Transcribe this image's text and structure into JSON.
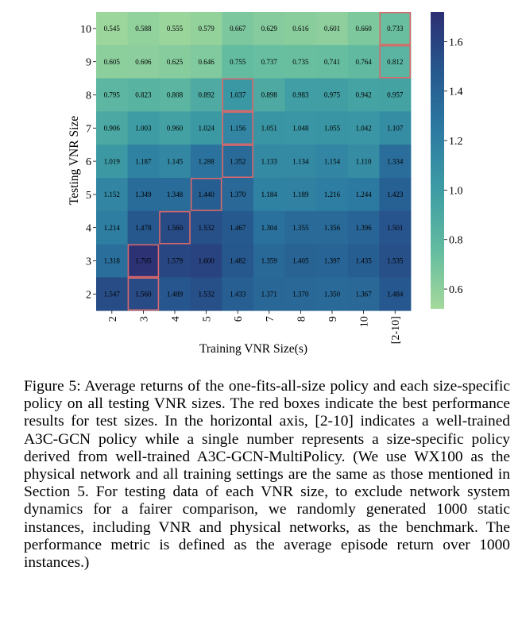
{
  "chart_data": {
    "type": "heatmap",
    "xlabel": "Training VNR Size(s)",
    "ylabel": "Testing VNR Size",
    "x_categories": [
      "2",
      "3",
      "4",
      "5",
      "6",
      "7",
      "8",
      "9",
      "10",
      "[2-10]"
    ],
    "y_categories": [
      "10",
      "9",
      "8",
      "7",
      "6",
      "5",
      "4",
      "3",
      "2"
    ],
    "values": [
      [
        0.545,
        0.588,
        0.555,
        0.579,
        0.667,
        0.629,
        0.616,
        0.601,
        0.66,
        0.733
      ],
      [
        0.605,
        0.606,
        0.625,
        0.646,
        0.755,
        0.737,
        0.735,
        0.741,
        0.764,
        0.812
      ],
      [
        0.795,
        0.823,
        0.808,
        0.892,
        1.037,
        0.898,
        0.983,
        0.975,
        0.942,
        0.957
      ],
      [
        0.906,
        1.003,
        0.96,
        1.024,
        1.156,
        1.051,
        1.048,
        1.055,
        1.042,
        1.107
      ],
      [
        1.019,
        1.187,
        1.145,
        1.288,
        1.352,
        1.133,
        1.134,
        1.154,
        1.11,
        1.334
      ],
      [
        1.152,
        1.349,
        1.348,
        1.44,
        1.37,
        1.184,
        1.189,
        1.216,
        1.244,
        1.423
      ],
      [
        1.214,
        1.478,
        1.56,
        1.532,
        1.467,
        1.304,
        1.355,
        1.356,
        1.396,
        1.501
      ],
      [
        1.318,
        1.705,
        1.579,
        1.6,
        1.482,
        1.359,
        1.405,
        1.397,
        1.435,
        1.535
      ],
      [
        1.547,
        1.56,
        1.489,
        1.532,
        1.433,
        1.371,
        1.37,
        1.35,
        1.367,
        1.484
      ]
    ],
    "value_labels": [
      [
        "0.545",
        "0.588",
        "0.555",
        "0.579",
        "0.667",
        "0.629",
        "0.616",
        "0.601",
        "0.660",
        "0.733"
      ],
      [
        "0.605",
        "0.606",
        "0.625",
        "0.646",
        "0.755",
        "0.737",
        "0.735",
        "0.741",
        "0.764",
        "0.812"
      ],
      [
        "0.795",
        "0.823",
        "0.808",
        "0.892",
        "1.037",
        "0.898",
        "0.983",
        "0.975",
        "0.942",
        "0.957"
      ],
      [
        "0.906",
        "1.003",
        "0.960",
        "1.024",
        "1.156",
        "1.051",
        "1.048",
        "1.055",
        "1.042",
        "1.107"
      ],
      [
        "1.019",
        "1.187",
        "1.145",
        "1.288",
        "1.352",
        "1.133",
        "1.134",
        "1.154",
        "1.110",
        "1.334"
      ],
      [
        "1.152",
        "1.349",
        "1.348",
        "1.440",
        "1.370",
        "1.184",
        "1.189",
        "1.216",
        "1.244",
        "1.423"
      ],
      [
        "1.214",
        "1.478",
        "1.560",
        "1.532",
        "1.467",
        "1.304",
        "1.355",
        "1.356",
        "1.396",
        "1.501"
      ],
      [
        "1.318",
        "1.705",
        "1.579",
        "1.600",
        "1.482",
        "1.359",
        "1.405",
        "1.397",
        "1.435",
        "1.535"
      ],
      [
        "1.547",
        "1.560",
        "1.489",
        "1.532",
        "1.433",
        "1.371",
        "1.370",
        "1.350",
        "1.367",
        "1.484"
      ]
    ],
    "highlighted_cells": [
      {
        "row": "10",
        "col": "[2-10]"
      },
      {
        "row": "9",
        "col": "[2-10]"
      },
      {
        "row": "8",
        "col": "6"
      },
      {
        "row": "7",
        "col": "6"
      },
      {
        "row": "6",
        "col": "6"
      },
      {
        "row": "5",
        "col": "5"
      },
      {
        "row": "4",
        "col": "4"
      },
      {
        "row": "3",
        "col": "3"
      },
      {
        "row": "2",
        "col": "3"
      }
    ],
    "highlight_color": "#d9696b",
    "colorbar": {
      "ticks": [
        0.6,
        0.8,
        1.0,
        1.2,
        1.4,
        1.6
      ],
      "tick_labels": [
        "0.6",
        "0.8",
        "1.0",
        "1.2",
        "1.4",
        "1.6"
      ],
      "range": [
        0.52,
        1.72
      ]
    },
    "colormap": [
      "#a4d99b",
      "#62bba0",
      "#3d9ca4",
      "#2c7aa2",
      "#26588e",
      "#2c2f72"
    ]
  },
  "caption": "Figure 5: Average returns of the one-fits-all-size policy and each size-specific policy on all testing VNR sizes. The red boxes indicate the best performance results for test sizes. In the horizontal axis, [2-10] indicates a well-trained A3C-GCN policy while a single number represents a size-specific policy derived from well-trained A3C-GCN-MultiPolicy. (We use WX100 as the physical network and all training settings are the same as those mentioned in Section 5. For testing data of each VNR size, to exclude network system dynamics for a fairer comparison, we randomly generated 1000 static instances, including VNR and physical networks, as the benchmark. The performance metric is defined as the average episode return over 1000 instances.)"
}
